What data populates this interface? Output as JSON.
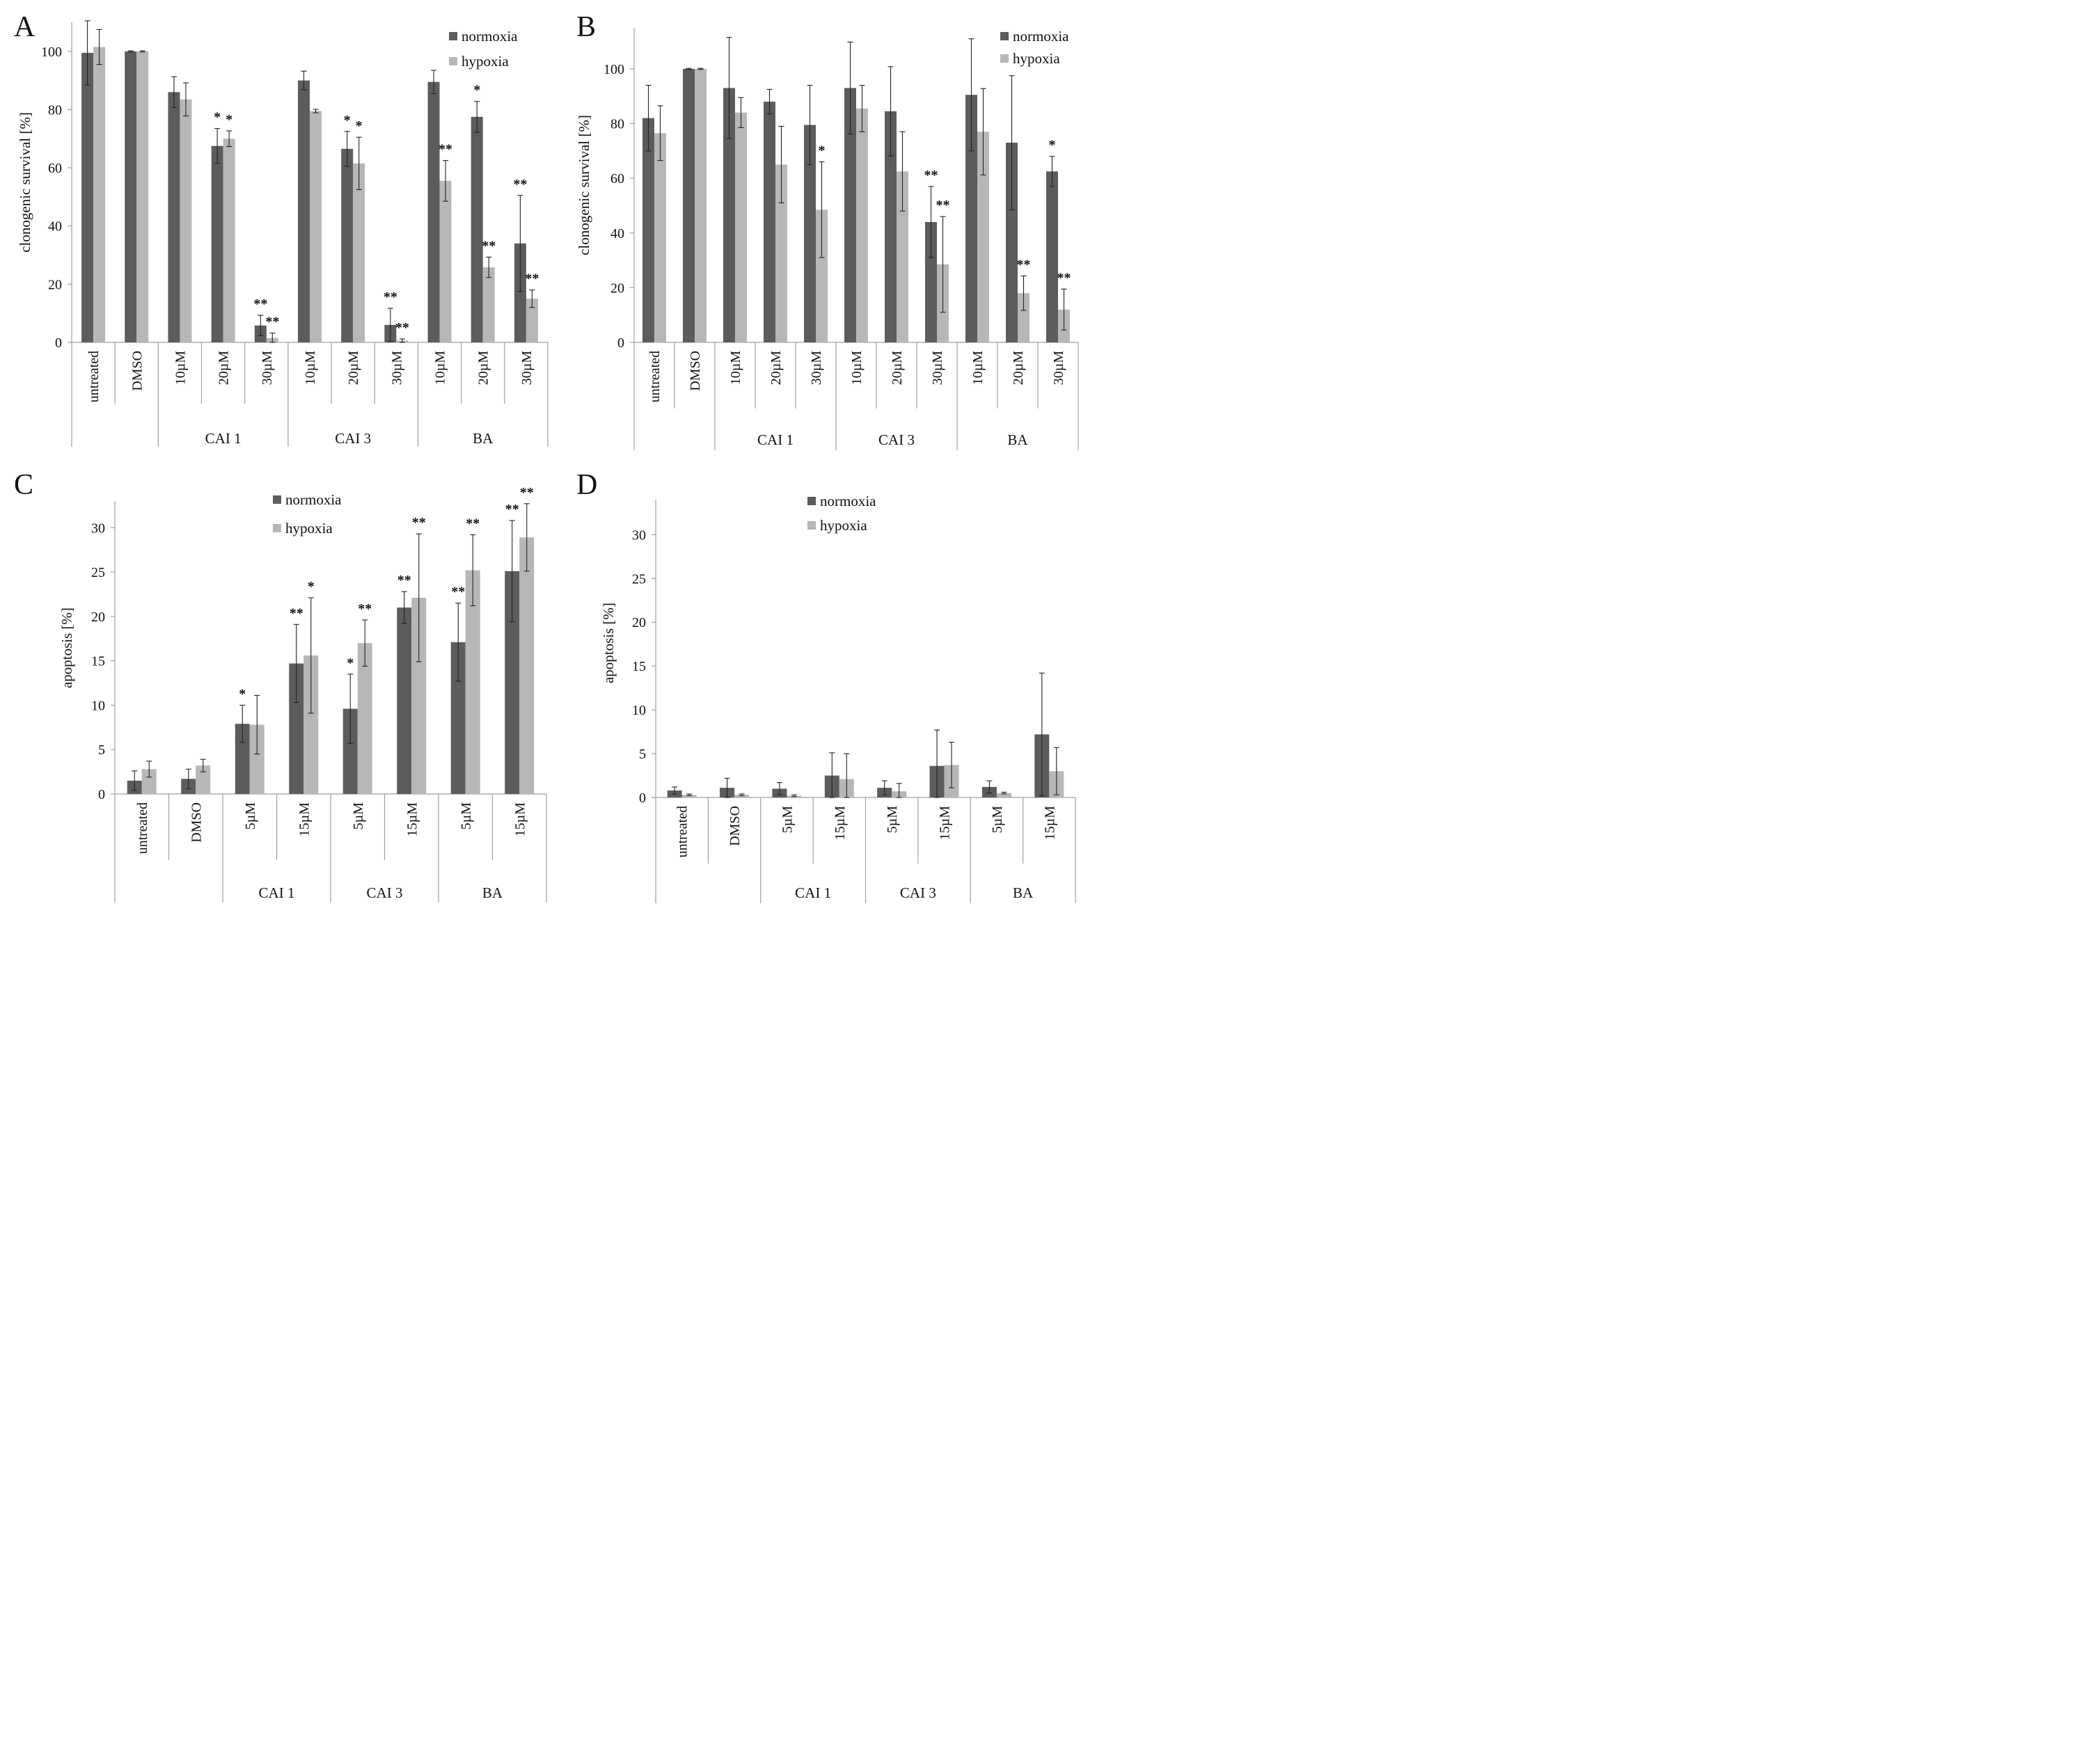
{
  "colors": {
    "normoxia": "#5c5c5c",
    "hypoxia": "#b7b7b7",
    "axis": "#a0a0a0",
    "error": "#222222"
  },
  "chart_data": [
    {
      "panel": "A",
      "type": "bar",
      "ylabel": "clonogenic survival [%]",
      "ylim": [
        0,
        110
      ],
      "yticks": [
        0,
        20,
        40,
        60,
        80,
        100
      ],
      "legend_placement": "top-right",
      "categories": [
        "untreated",
        "DMSO",
        "10µM",
        "20µM",
        "30µM",
        "10µM",
        "20µM",
        "30µM",
        "10µM",
        "20µM",
        "30µM"
      ],
      "groups": [
        {
          "label": "CAI 1",
          "start": 2,
          "end": 4
        },
        {
          "label": "CAI 3",
          "start": 5,
          "end": 7
        },
        {
          "label": "BA",
          "start": 8,
          "end": 10
        }
      ],
      "series": [
        {
          "name": "normoxia",
          "values": [
            99.5,
            100,
            86,
            67.5,
            5.8,
            90,
            66.5,
            6,
            89.5,
            77.5,
            34
          ],
          "errors": [
            11,
            0.2,
            5.3,
            6,
            3.5,
            3.2,
            6,
            5.7,
            4,
            5.3,
            16.5
          ],
          "sig": [
            "",
            "",
            "",
            "*",
            "**",
            "",
            "*",
            "**",
            "",
            "*",
            "**"
          ]
        },
        {
          "name": "hypoxia",
          "values": [
            101.5,
            100,
            83.5,
            70,
            1.5,
            79.5,
            61.5,
            0.6,
            55.5,
            25.8,
            15
          ],
          "errors": [
            6,
            0.2,
            5.7,
            2.7,
            1.7,
            0.6,
            9,
            0.6,
            7,
            3.5,
            3
          ],
          "sig": [
            "",
            "",
            "",
            "*",
            "**",
            "",
            "*",
            "**",
            "**",
            "**",
            "**"
          ]
        }
      ]
    },
    {
      "panel": "B",
      "type": "bar",
      "ylabel": "clonogenic survival [%]",
      "ylim": [
        0,
        115
      ],
      "yticks": [
        0,
        20,
        40,
        60,
        80,
        100
      ],
      "legend_placement": "top-right",
      "categories": [
        "untreated",
        "DMSO",
        "10µM",
        "20µM",
        "30µM",
        "10µM",
        "20µM",
        "30µM",
        "10µM",
        "20µM",
        "30µM"
      ],
      "groups": [
        {
          "label": "CAI 1",
          "start": 2,
          "end": 4
        },
        {
          "label": "CAI 3",
          "start": 5,
          "end": 7
        },
        {
          "label": "BA",
          "start": 8,
          "end": 10
        }
      ],
      "series": [
        {
          "name": "normoxia",
          "values": [
            82,
            100,
            93,
            88,
            79.5,
            93,
            84.5,
            44,
            90.5,
            73,
            62.5
          ],
          "errors": [
            12,
            0.2,
            18.5,
            4.5,
            14.5,
            16.8,
            16.3,
            13,
            20.5,
            24.5,
            5.5
          ],
          "sig": [
            "",
            "",
            "",
            "",
            "",
            "",
            "",
            "**",
            "",
            "",
            "*"
          ]
        },
        {
          "name": "hypoxia",
          "values": [
            76.5,
            100,
            84,
            65,
            48.5,
            85.5,
            62.5,
            28.5,
            77,
            18,
            12
          ],
          "errors": [
            10,
            0.2,
            5.5,
            14,
            17.5,
            8.5,
            14.5,
            17.5,
            15.8,
            6.3,
            7.5
          ],
          "sig": [
            "",
            "",
            "",
            "",
            "*",
            "",
            "",
            "**",
            "",
            "**",
            "**"
          ]
        }
      ]
    },
    {
      "panel": "C",
      "type": "bar",
      "ylabel": "apoptosis [%]",
      "ylim": [
        0,
        33
      ],
      "yticks": [
        0,
        5,
        10,
        15,
        20,
        25,
        30
      ],
      "legend_placement": "top-center",
      "categories": [
        "untreated",
        "DMSO",
        "5µM",
        "15µM",
        "5µM",
        "15µM",
        "5µM",
        "15µM"
      ],
      "groups": [
        {
          "label": "CAI 1",
          "start": 2,
          "end": 3
        },
        {
          "label": "CAI 3",
          "start": 4,
          "end": 5
        },
        {
          "label": "BA",
          "start": 6,
          "end": 7
        }
      ],
      "series": [
        {
          "name": "normoxia",
          "values": [
            1.5,
            1.7,
            7.9,
            14.7,
            9.6,
            21,
            17.1,
            25.1
          ],
          "errors": [
            1.1,
            1.1,
            2.1,
            4.4,
            3.9,
            1.8,
            4.4,
            5.7
          ],
          "sig": [
            "",
            "",
            "*",
            "**",
            "*",
            "**",
            "**",
            "**"
          ]
        },
        {
          "name": "hypoxia",
          "values": [
            2.8,
            3.2,
            7.8,
            15.6,
            17,
            22.1,
            25.2,
            28.9
          ],
          "errors": [
            0.9,
            0.7,
            3.3,
            6.5,
            2.6,
            7.2,
            4,
            3.8
          ],
          "sig": [
            "",
            "",
            "",
            "*",
            "**",
            "**",
            "**",
            "**"
          ]
        }
      ]
    },
    {
      "panel": "D",
      "type": "bar",
      "ylabel": "apoptosis [%]",
      "ylim": [
        0,
        34
      ],
      "yticks": [
        0,
        5,
        10,
        15,
        20,
        25,
        30
      ],
      "legend_placement": "top-center",
      "categories": [
        "untreated",
        "DMSO",
        "5µM",
        "15µM",
        "5µM",
        "15µM",
        "5µM",
        "15µM"
      ],
      "groups": [
        {
          "label": "CAI 1",
          "start": 2,
          "end": 3
        },
        {
          "label": "CAI 3",
          "start": 4,
          "end": 5
        },
        {
          "label": "BA",
          "start": 6,
          "end": 7
        }
      ],
      "series": [
        {
          "name": "normoxia",
          "values": [
            0.8,
            1.1,
            1.0,
            2.5,
            1.1,
            3.6,
            1.2,
            7.2
          ],
          "errors": [
            0.4,
            1.1,
            0.7,
            2.6,
            0.8,
            4.1,
            0.7,
            7.0
          ],
          "sig": [
            "",
            "",
            "",
            "",
            "",
            "",
            "",
            ""
          ]
        },
        {
          "name": "hypoxia",
          "values": [
            0.3,
            0.3,
            0.2,
            2.1,
            0.7,
            3.7,
            0.5,
            3.0
          ],
          "errors": [
            0.1,
            0.1,
            0.1,
            2.9,
            0.9,
            2.6,
            0.1,
            2.7
          ],
          "sig": [
            "",
            "",
            "",
            "",
            "",
            "",
            "",
            ""
          ]
        }
      ]
    }
  ]
}
